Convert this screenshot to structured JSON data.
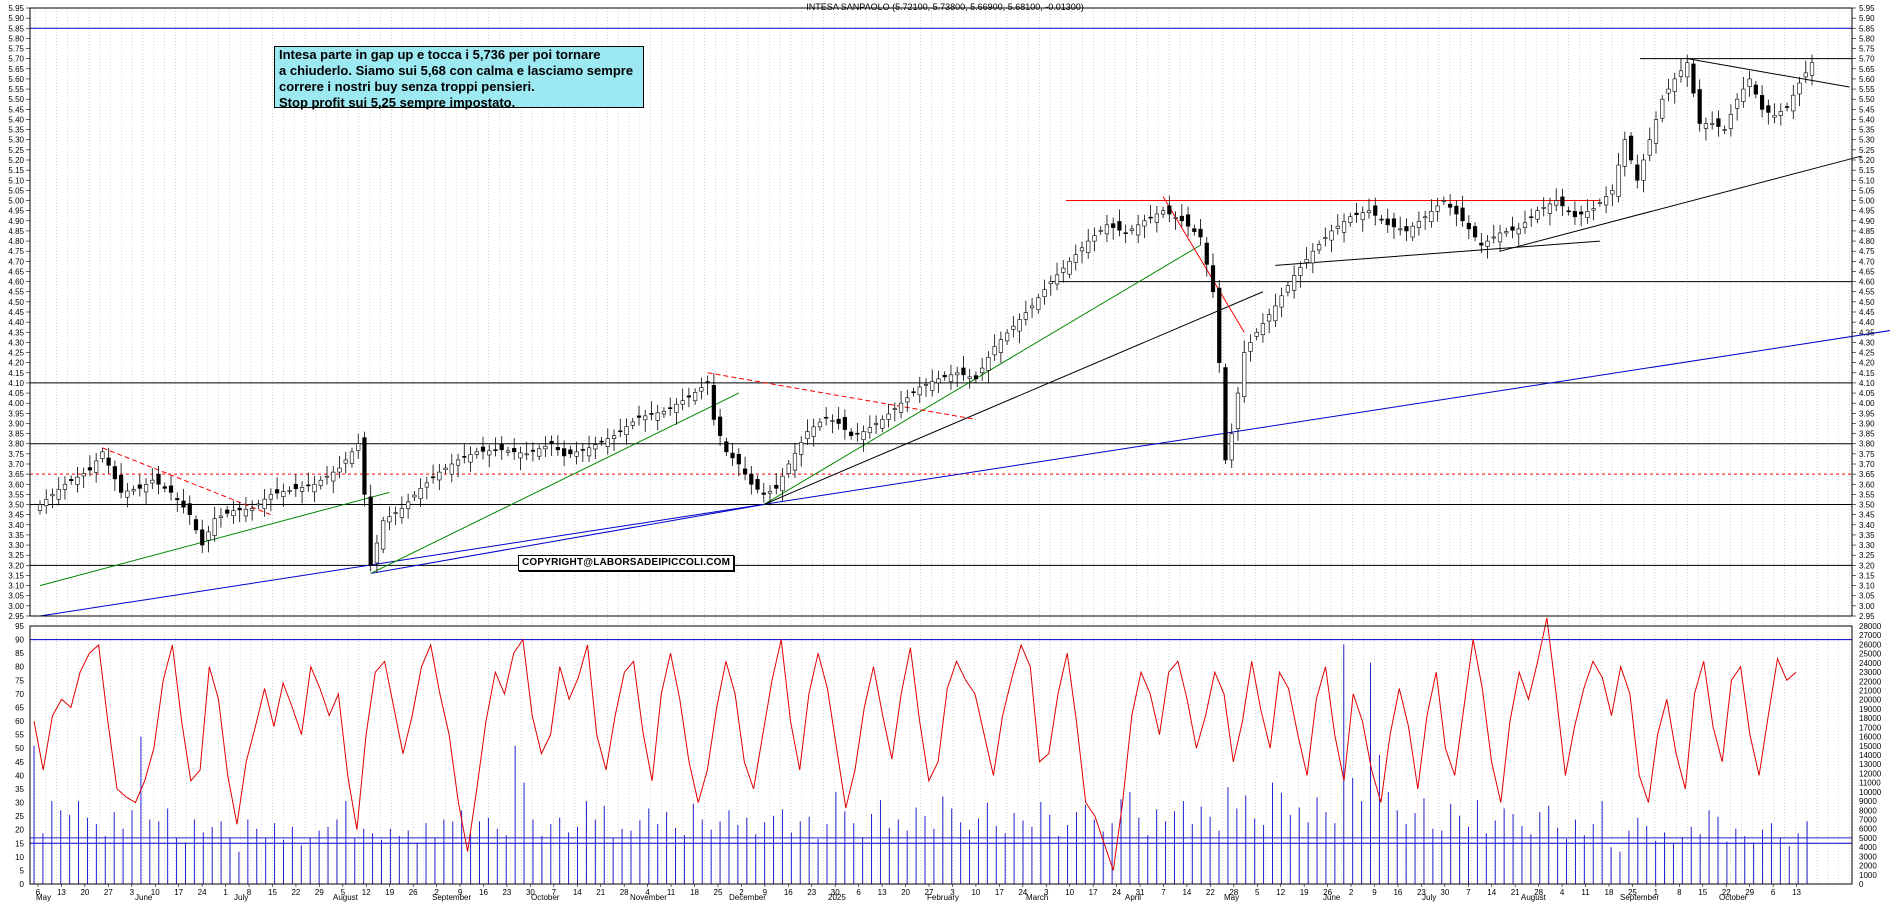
{
  "title": "INTESA SANPAOLO (5.72100, 5.73800, 5.66900, 5.68100, -0.01300)",
  "annotation": {
    "lines": [
      "Intesa parte in gap up e tocca i 5,736 per poi tornare",
      "a chiuderlo. Siamo sui 5,68 con calma e lasciamo sempre",
      "correre i nostri buy senza troppi pensieri.",
      "Stop profit sui 5,25 sempre impostato."
    ]
  },
  "copyright": "COPYRIGHT@LABORSADEIPICCOLI.COM",
  "colors": {
    "candle": "#000000",
    "oscillator": "#e00000",
    "volume": "#2020d0",
    "support_line": "#0000cc",
    "resistance_line": "#ff0000",
    "trend_green": "#008800"
  },
  "chart_data": [
    {
      "type": "candlestick",
      "title": "INTESA SANPAOLO",
      "ylim": [
        2.95,
        5.95
      ],
      "y_ticks": [
        "5.95",
        "5.90",
        "5.85",
        "5.80",
        "5.75",
        "5.70",
        "5.65",
        "5.60",
        "5.55",
        "5.50",
        "5.45",
        "5.40",
        "5.35",
        "5.30",
        "5.25",
        "5.20",
        "5.15",
        "5.10",
        "5.05",
        "5.00",
        "4.95",
        "4.90",
        "4.85",
        "4.80",
        "4.75",
        "4.70",
        "4.65",
        "4.60",
        "4.55",
        "4.50",
        "4.45",
        "4.40",
        "4.35",
        "4.30",
        "4.25",
        "4.20",
        "4.15",
        "4.10",
        "4.05",
        "4.00",
        "3.95",
        "3.90",
        "3.85",
        "3.80",
        "3.75",
        "3.70",
        "3.65",
        "3.60",
        "3.55",
        "3.50",
        "3.45",
        "3.40",
        "3.35",
        "3.30",
        "3.25",
        "3.20",
        "3.15",
        "3.10",
        "3.05",
        "3.00",
        "2.95"
      ],
      "close_path": [
        [
          0,
          3.5
        ],
        [
          4,
          3.6
        ],
        [
          8,
          3.67
        ],
        [
          10,
          3.76
        ],
        [
          13,
          3.56
        ],
        [
          16,
          3.58
        ],
        [
          18,
          3.62
        ],
        [
          21,
          3.56
        ],
        [
          24,
          3.45
        ],
        [
          26,
          3.3
        ],
        [
          28,
          3.43
        ],
        [
          31,
          3.47
        ],
        [
          34,
          3.48
        ],
        [
          37,
          3.55
        ],
        [
          40,
          3.57
        ],
        [
          44,
          3.6
        ],
        [
          48,
          3.68
        ],
        [
          51,
          3.8
        ],
        [
          52,
          3.55
        ],
        [
          53,
          3.2
        ],
        [
          55,
          3.42
        ],
        [
          58,
          3.48
        ],
        [
          61,
          3.58
        ],
        [
          64,
          3.66
        ],
        [
          67,
          3.72
        ],
        [
          70,
          3.76
        ],
        [
          74,
          3.77
        ],
        [
          78,
          3.75
        ],
        [
          82,
          3.8
        ],
        [
          84,
          3.74
        ],
        [
          88,
          3.78
        ],
        [
          92,
          3.84
        ],
        [
          96,
          3.93
        ],
        [
          100,
          3.96
        ],
        [
          104,
          4.03
        ],
        [
          107,
          4.1
        ],
        [
          108,
          3.92
        ],
        [
          110,
          3.76
        ],
        [
          112,
          3.7
        ],
        [
          114,
          3.6
        ],
        [
          116,
          3.55
        ],
        [
          118,
          3.58
        ],
        [
          120,
          3.7
        ],
        [
          123,
          3.86
        ],
        [
          126,
          3.93
        ],
        [
          128,
          3.9
        ],
        [
          130,
          3.84
        ],
        [
          132,
          3.86
        ],
        [
          135,
          3.92
        ],
        [
          138,
          4.0
        ],
        [
          141,
          4.08
        ],
        [
          144,
          4.12
        ],
        [
          147,
          4.15
        ],
        [
          150,
          4.12
        ],
        [
          153,
          4.28
        ],
        [
          156,
          4.38
        ],
        [
          159,
          4.48
        ],
        [
          162,
          4.6
        ],
        [
          165,
          4.7
        ],
        [
          168,
          4.8
        ],
        [
          171,
          4.88
        ],
        [
          174,
          4.84
        ],
        [
          177,
          4.9
        ],
        [
          180,
          4.95
        ],
        [
          183,
          4.9
        ],
        [
          186,
          4.82
        ],
        [
          188,
          4.55
        ],
        [
          189,
          4.2
        ],
        [
          190,
          3.72
        ],
        [
          191,
          3.85
        ],
        [
          193,
          4.25
        ],
        [
          195,
          4.35
        ],
        [
          198,
          4.48
        ],
        [
          201,
          4.63
        ],
        [
          204,
          4.75
        ],
        [
          207,
          4.85
        ],
        [
          210,
          4.92
        ],
        [
          213,
          4.95
        ],
        [
          216,
          4.88
        ],
        [
          219,
          4.85
        ],
        [
          222,
          4.92
        ],
        [
          225,
          5.0
        ],
        [
          228,
          4.9
        ],
        [
          231,
          4.78
        ],
        [
          234,
          4.84
        ],
        [
          237,
          4.86
        ],
        [
          240,
          4.95
        ],
        [
          243,
          5.0
        ],
        [
          246,
          4.92
        ],
        [
          249,
          4.96
        ],
        [
          252,
          5.05
        ],
        [
          254,
          5.3
        ],
        [
          256,
          5.1
        ],
        [
          258,
          5.3
        ],
        [
          260,
          5.5
        ],
        [
          262,
          5.6
        ],
        [
          264,
          5.68
        ],
        [
          266,
          5.38
        ],
        [
          268,
          5.38
        ],
        [
          270,
          5.35
        ],
        [
          272,
          5.5
        ],
        [
          274,
          5.6
        ],
        [
          276,
          5.45
        ],
        [
          278,
          5.42
        ],
        [
          280,
          5.46
        ],
        [
          282,
          5.58
        ],
        [
          284,
          5.68
        ]
      ],
      "last_close": 5.681,
      "horizontal_levels": [
        5.85,
        4.6,
        4.1,
        3.8,
        3.65,
        3.5,
        3.2,
        2.95,
        5.7
      ],
      "resistance_line_red": 5.0
    },
    {
      "type": "line",
      "name": "oscillator",
      "ylim": [
        0,
        95
      ],
      "y_ticks": [
        "95",
        "90",
        "85",
        "80",
        "75",
        "70",
        "65",
        "60",
        "55",
        "50",
        "45",
        "40",
        "35",
        "30",
        "25",
        "20",
        "15",
        "10",
        "5",
        "0"
      ],
      "levels": [
        90,
        15
      ],
      "values": [
        60,
        42,
        62,
        68,
        65,
        78,
        85,
        88,
        60,
        35,
        32,
        30,
        38,
        50,
        75,
        88,
        60,
        38,
        42,
        80,
        68,
        40,
        22,
        45,
        58,
        72,
        58,
        74,
        65,
        55,
        80,
        72,
        62,
        70,
        40,
        20,
        55,
        78,
        82,
        65,
        48,
        62,
        80,
        88,
        70,
        55,
        30,
        12,
        35,
        60,
        78,
        70,
        85,
        90,
        62,
        48,
        55,
        80,
        68,
        76,
        88,
        55,
        42,
        62,
        78,
        82,
        56,
        38,
        70,
        85,
        68,
        45,
        30,
        42,
        65,
        82,
        70,
        45,
        35,
        55,
        75,
        90,
        60,
        42,
        70,
        85,
        72,
        50,
        28,
        42,
        65,
        80,
        62,
        46,
        70,
        87,
        60,
        38,
        45,
        72,
        82,
        75,
        70,
        55,
        40,
        62,
        76,
        88,
        80,
        45,
        48,
        70,
        85,
        60,
        30,
        25,
        15,
        5,
        30,
        62,
        78,
        70,
        55,
        78,
        82,
        68,
        50,
        62,
        78,
        70,
        45,
        60,
        82,
        64,
        50,
        78,
        72,
        55,
        40,
        68,
        80,
        55,
        38,
        70,
        60,
        42,
        30,
        55,
        72,
        58,
        35,
        62,
        78,
        50,
        40,
        65,
        90,
        72,
        45,
        30,
        60,
        78,
        68,
        82,
        98,
        70,
        40,
        58,
        72,
        82,
        76,
        62,
        80,
        70,
        40,
        30,
        55,
        68,
        48,
        35,
        70,
        82,
        58,
        45,
        75,
        80,
        55,
        40,
        62,
        83,
        75,
        78
      ]
    },
    {
      "type": "bar",
      "name": "volume",
      "ylim": [
        0,
        28000
      ],
      "y_ticks": [
        "28000",
        "27000",
        "26000",
        "25000",
        "24000",
        "23000",
        "22000",
        "21000",
        "20000",
        "19000",
        "18000",
        "17000",
        "16000",
        "15000",
        "14000",
        "13000",
        "12000",
        "11000",
        "10000",
        "9000",
        "8000",
        "7000",
        "6000",
        "5000",
        "4000",
        "3000",
        "2000",
        "1000",
        "0"
      ],
      "level": 5000,
      "values": [
        15000,
        5500,
        9000,
        8000,
        7500,
        9000,
        7200,
        6500,
        5200,
        7800,
        6000,
        8000,
        16000,
        7000,
        6800,
        8200,
        5000,
        4500,
        7000,
        5600,
        6200,
        6800,
        5000,
        3500,
        7000,
        6000,
        5000,
        6600,
        4800,
        6200,
        4200,
        5000,
        5800,
        6200,
        7000,
        9000,
        5000,
        6000,
        5500,
        4800,
        6000,
        5200,
        5800,
        4500,
        6600,
        5000,
        7000,
        6800,
        8000,
        5500,
        6800,
        7200,
        6000,
        5300,
        15000,
        11000,
        7000,
        5200,
        6500,
        7200,
        5600,
        6200,
        9000,
        7000,
        8500,
        5000,
        6000,
        5800,
        6900,
        8200,
        6500,
        7800,
        6100,
        5300,
        8700,
        7000,
        5900,
        6800,
        8000,
        6400,
        7200,
        5400,
        6700,
        7400,
        8100,
        5600,
        6800,
        7300,
        4900,
        6500,
        10000,
        7900,
        6600,
        5100,
        7600,
        9100,
        6100,
        7000,
        5800,
        8300,
        7400,
        6000,
        9500,
        8200,
        6700,
        5900,
        7100,
        8800,
        6300,
        5500,
        7700,
        6900,
        6200,
        8900,
        7500,
        5200,
        6400,
        7800,
        8600,
        7000,
        5700,
        6600,
        9200,
        10000,
        7200,
        5300,
        8100,
        6800,
        7900,
        9000,
        6500,
        8400,
        7300,
        5800,
        10500,
        8200,
        9600,
        7100,
        6400,
        11000,
        9900,
        7500,
        8300,
        6700,
        9400,
        7800,
        6600,
        26000,
        11500,
        9000,
        24000,
        14000,
        10000,
        8000,
        6500,
        7700,
        9300,
        6000,
        5800,
        8700,
        7400,
        6200,
        9100,
        5500,
        6900,
        8200,
        7600,
        6300,
        5400,
        7800,
        8500,
        6100,
        4900,
        7000,
        5300,
        6500,
        9000,
        4000,
        3500,
        5800,
        7200,
        6300,
        4700,
        5600,
        4400,
        5100,
        6200,
        5400,
        8000,
        7300,
        4600,
        6000,
        5200,
        4500,
        5900,
        6600,
        5000,
        4100,
        5500,
        6800
      ]
    }
  ],
  "x_axis": {
    "months": [
      "May",
      "June",
      "July",
      "August",
      "September",
      "October",
      "November",
      "December",
      "2025",
      "February",
      "March",
      "April",
      "May",
      "June",
      "July",
      "August",
      "September",
      "October"
    ],
    "days": [
      "6",
      "13",
      "20",
      "27",
      "3",
      "10",
      "17",
      "24",
      "1",
      "8",
      "15",
      "22",
      "29",
      "5",
      "12",
      "19",
      "26",
      "2",
      "9",
      "16",
      "23",
      "30",
      "7",
      "14",
      "21",
      "28",
      "4",
      "11",
      "18",
      "25",
      "2",
      "9",
      "16",
      "23",
      "30",
      "6",
      "13",
      "20",
      "27",
      "3",
      "10",
      "17",
      "24",
      "3",
      "10",
      "17",
      "24",
      "31",
      "7",
      "14",
      "22",
      "28",
      "5",
      "12",
      "19",
      "26",
      "2",
      "9",
      "16",
      "23",
      "30",
      "7",
      "14",
      "21",
      "28",
      "4",
      "11",
      "18",
      "25",
      "1",
      "8",
      "15",
      "22",
      "29",
      "6",
      "13"
    ]
  }
}
